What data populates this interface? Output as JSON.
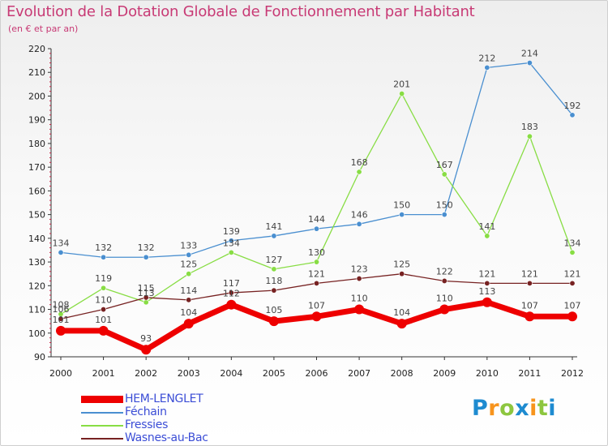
{
  "header": {
    "title": "Evolution de la Dotation Globale de Fonctionnement par Habitant",
    "subtitle": "(en € et par an)"
  },
  "brand": {
    "name": "Proxiti",
    "letters": [
      "P",
      "r",
      "o",
      "x",
      "i",
      "t",
      "i"
    ],
    "colors": [
      "#1e8bd0",
      "#f7941d",
      "#8dc63f",
      "#1e8bd0",
      "#f7941d",
      "#8dc63f",
      "#1e8bd0"
    ]
  },
  "colors": {
    "title": "#c83a75",
    "axis": "#333333",
    "grid_marks": "#cc2244"
  },
  "chart_data": {
    "type": "line",
    "title": "Evolution de la Dotation Globale de Fonctionnement par Habitant",
    "subtitle": "(en € et par an)",
    "xlabel": "",
    "ylabel": "",
    "x": [
      "2000",
      "2001",
      "2002",
      "2003",
      "2004",
      "2005",
      "2006",
      "2007",
      "2008",
      "2009",
      "2010",
      "2011",
      "2012"
    ],
    "ylim": [
      90,
      220
    ],
    "yticks": [
      90,
      100,
      110,
      120,
      130,
      140,
      150,
      160,
      170,
      180,
      190,
      200,
      210,
      220
    ],
    "legend_position": "bottom-left",
    "series": [
      {
        "name": "HEM-LENGLET",
        "color": "#ee0000",
        "values": [
          101,
          101,
          93,
          104,
          112,
          105,
          107,
          110,
          104,
          110,
          113,
          107,
          107
        ],
        "labels": [
          "101",
          "101",
          "93",
          "104",
          "112",
          "105",
          "107",
          "110",
          "104",
          "110",
          "113",
          "107",
          "107"
        ]
      },
      {
        "name": "Féchain",
        "color": "#4a8fd0",
        "values": [
          134,
          132,
          132,
          133,
          139,
          141,
          144,
          146,
          150,
          150,
          212,
          214,
          192
        ],
        "labels": [
          "134",
          "132",
          "132",
          "133",
          "139",
          "141",
          "144",
          "146",
          "150",
          "150",
          "212",
          "214",
          "192"
        ]
      },
      {
        "name": "Fressies",
        "color": "#88dd44",
        "values": [
          108,
          119,
          113,
          125,
          134,
          127,
          130,
          168,
          201,
          167,
          141,
          183,
          134
        ],
        "labels": [
          "108",
          "119",
          "113",
          "125",
          "134",
          "127",
          "130",
          "168",
          "201",
          "167",
          "141",
          "183",
          "134"
        ]
      },
      {
        "name": "Wasnes-au-Bac",
        "color": "#772222",
        "values": [
          106,
          110,
          115,
          114,
          117,
          118,
          121,
          123,
          125,
          122,
          121,
          121,
          121
        ],
        "labels": [
          "106",
          "110",
          "115",
          "114",
          "117",
          "118",
          "121",
          "123",
          "125",
          "122",
          "121",
          "121",
          "121"
        ]
      }
    ]
  }
}
